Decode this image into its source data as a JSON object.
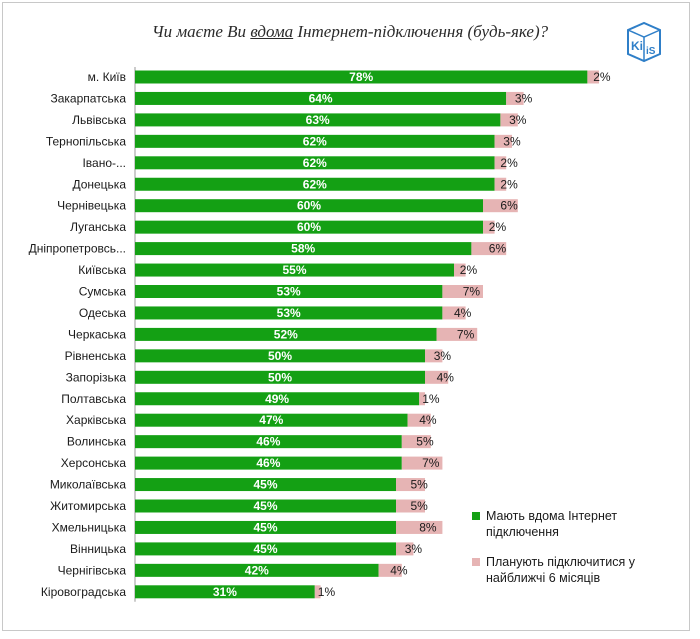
{
  "title": {
    "pre": "Чи маєте Ви ",
    "underlined": "вдома",
    "post": " Інтернет-підключення  (будь-яке)?"
  },
  "logo": {
    "text_top": "Ki",
    "text_bottom": "iS"
  },
  "colors": {
    "primary": "#14a014",
    "secondary": "#e6b4b4"
  },
  "chart_data": {
    "type": "bar",
    "orientation": "horizontal",
    "stacked": true,
    "categories": [
      "м. Київ",
      "Закарпатська",
      "Львівська",
      "Тернопільська",
      "Івано-...",
      "Донецька",
      "Чернівецька",
      "Луганська",
      "Дніпропетровсь...",
      "Київська",
      "Сумська",
      "Одеська",
      "Черкаська",
      "Рівненська",
      "Запорізька",
      "Полтавська",
      "Харківська",
      "Волинська",
      "Херсонська",
      "Миколаївська",
      "Житомирська",
      "Хмельницька",
      "Вінницька",
      "Чернігівська",
      "Кіровоградська"
    ],
    "series": [
      {
        "name": "Мають вдома Інтернет підключення",
        "values": [
          78,
          64,
          63,
          62,
          62,
          62,
          60,
          60,
          58,
          55,
          53,
          53,
          52,
          50,
          50,
          49,
          47,
          46,
          46,
          45,
          45,
          45,
          45,
          42,
          31
        ],
        "labels": [
          "78%",
          "64%",
          "63%",
          "62%",
          "62%",
          "62%",
          "60%",
          "60%",
          "58%",
          "55%",
          "53%",
          "53%",
          "52%",
          "50%",
          "50%",
          "49%",
          "47%",
          "46%",
          "46%",
          "45%",
          "45%",
          "45%",
          "45%",
          "42%",
          "31%"
        ]
      },
      {
        "name": "Планують підключитися у найближчі 6 місяців",
        "values": [
          2,
          3,
          3,
          3,
          2,
          2,
          6,
          2,
          6,
          2,
          7,
          4,
          7,
          3,
          4,
          1,
          4,
          5,
          7,
          5,
          5,
          8,
          3,
          4,
          1
        ],
        "labels": [
          "2%",
          "3%",
          "3%",
          "3%",
          "2%",
          "2%",
          "6%",
          "2%",
          "6%",
          "2%",
          "7%",
          "4%",
          "7%",
          "3%",
          "4%",
          "1%",
          "4%",
          "5%",
          "7%",
          "5%",
          "5%",
          "8%",
          "3%",
          "4%",
          "1%"
        ]
      }
    ],
    "legend": {
      "position": "bottom-right",
      "items": [
        "Мають вдома Інтернет підключення",
        "Планують підключитися у найближчі 6 місяців"
      ]
    },
    "xlim": [
      0,
      80
    ],
    "grid": false
  }
}
